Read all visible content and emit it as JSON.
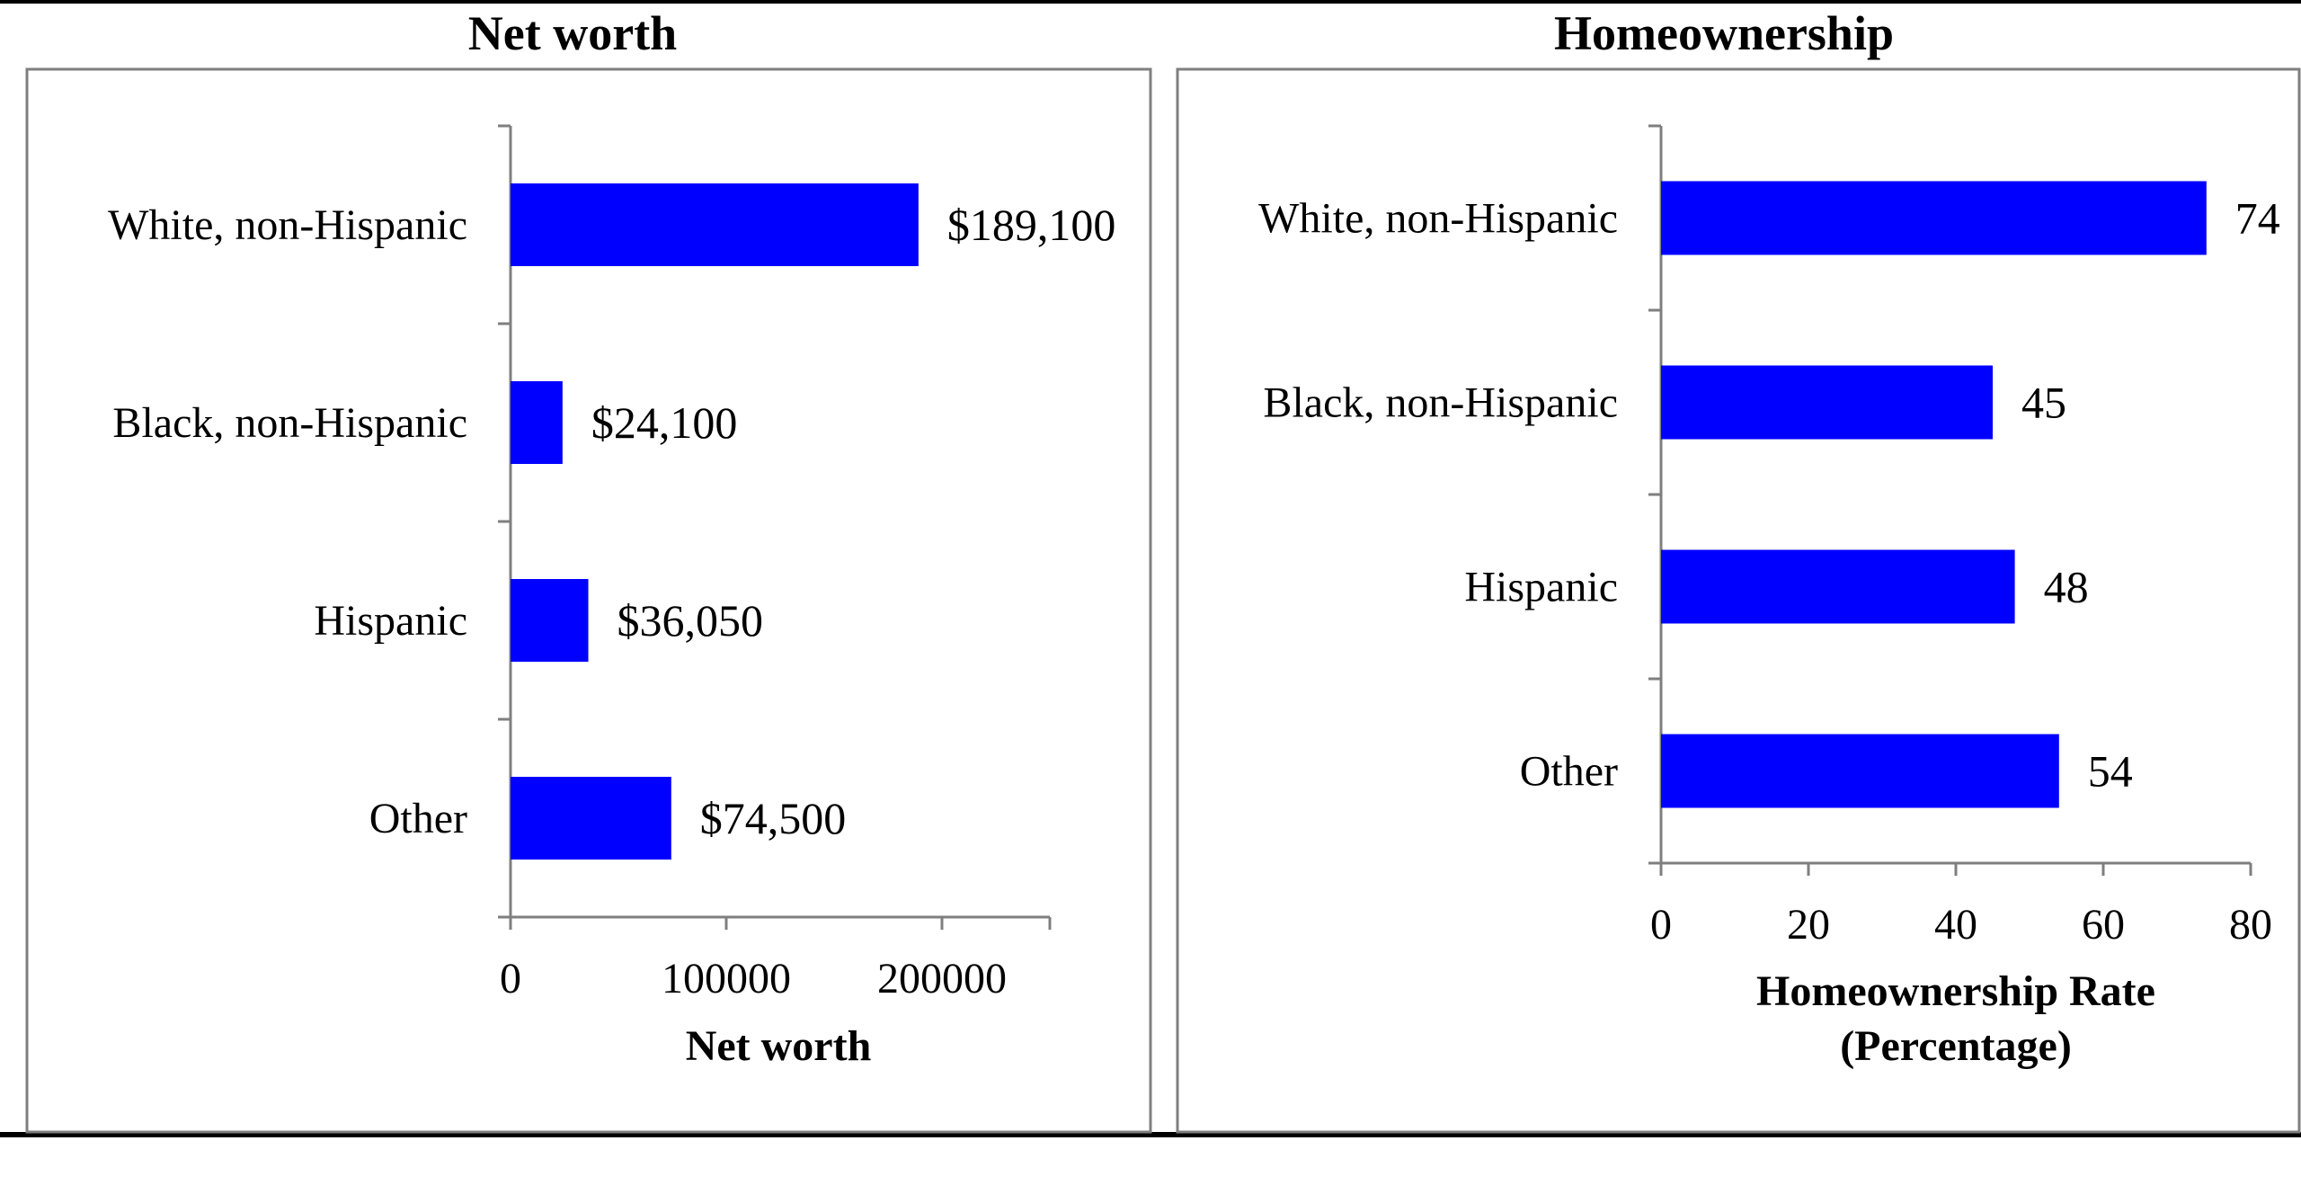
{
  "chart_data": [
    {
      "type": "bar",
      "orientation": "horizontal",
      "title": "Net worth",
      "categories": [
        "White, non-Hispanic",
        "Black, non-Hispanic",
        "Hispanic",
        "Other"
      ],
      "values": [
        189100,
        24100,
        36050,
        74500
      ],
      "value_labels": [
        "$189,100",
        "$24,100",
        "$36,050",
        "$74,500"
      ],
      "xlabel": "Net worth",
      "xlim": [
        0,
        250000
      ],
      "xticks": [
        0,
        100000,
        200000
      ],
      "xtick_labels": [
        "0",
        "100000",
        "200000"
      ],
      "bar_color": "#0000FF",
      "grid": false
    },
    {
      "type": "bar",
      "orientation": "horizontal",
      "title": "Homeownership",
      "categories": [
        "White, non-Hispanic",
        "Black, non-Hispanic",
        "Hispanic",
        "Other"
      ],
      "values": [
        74,
        45,
        48,
        54
      ],
      "value_labels": [
        "74",
        "45",
        "48",
        "54"
      ],
      "xlabel_lines": [
        "Homeownership Rate",
        "(Percentage)"
      ],
      "xlim": [
        0,
        80
      ],
      "xticks": [
        0,
        20,
        40,
        60,
        80
      ],
      "xtick_labels": [
        "0",
        "20",
        "40",
        "60",
        "80"
      ],
      "bar_color": "#0000FF",
      "grid": false
    }
  ]
}
